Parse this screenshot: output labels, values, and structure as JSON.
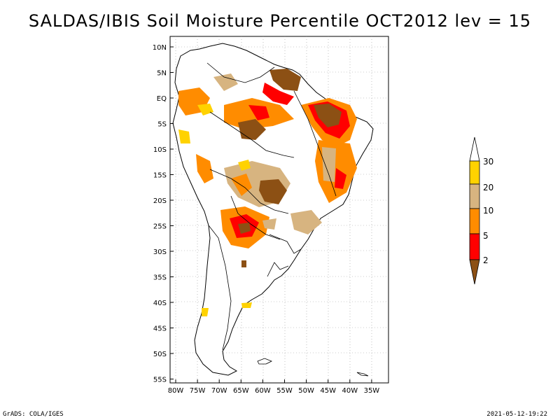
{
  "title": "SALDAS/IBIS Soil Moisture Percentile OCT2012 lev = 15",
  "footer": {
    "left": "GrADS: COLA/IGES",
    "right": "2021-05-12-19:22"
  },
  "map": {
    "lat_labels": [
      "10N",
      "5N",
      "EQ",
      "5S",
      "10S",
      "15S",
      "20S",
      "25S",
      "30S",
      "35S",
      "40S",
      "45S",
      "50S",
      "55S"
    ],
    "lon_labels": [
      "80W",
      "75W",
      "70W",
      "65W",
      "60W",
      "55W",
      "50W",
      "45W",
      "40W",
      "35W"
    ]
  },
  "colorbar": {
    "labels": [
      "30",
      "20",
      "10",
      "5",
      "2"
    ],
    "colors": {
      "above30": "#ffffff",
      "c20_30": "#ffd200",
      "c10_20": "#d7b480",
      "c5_10": "#ff8c00",
      "c2_5": "#ff0000",
      "below2": "#8c5014"
    }
  }
}
